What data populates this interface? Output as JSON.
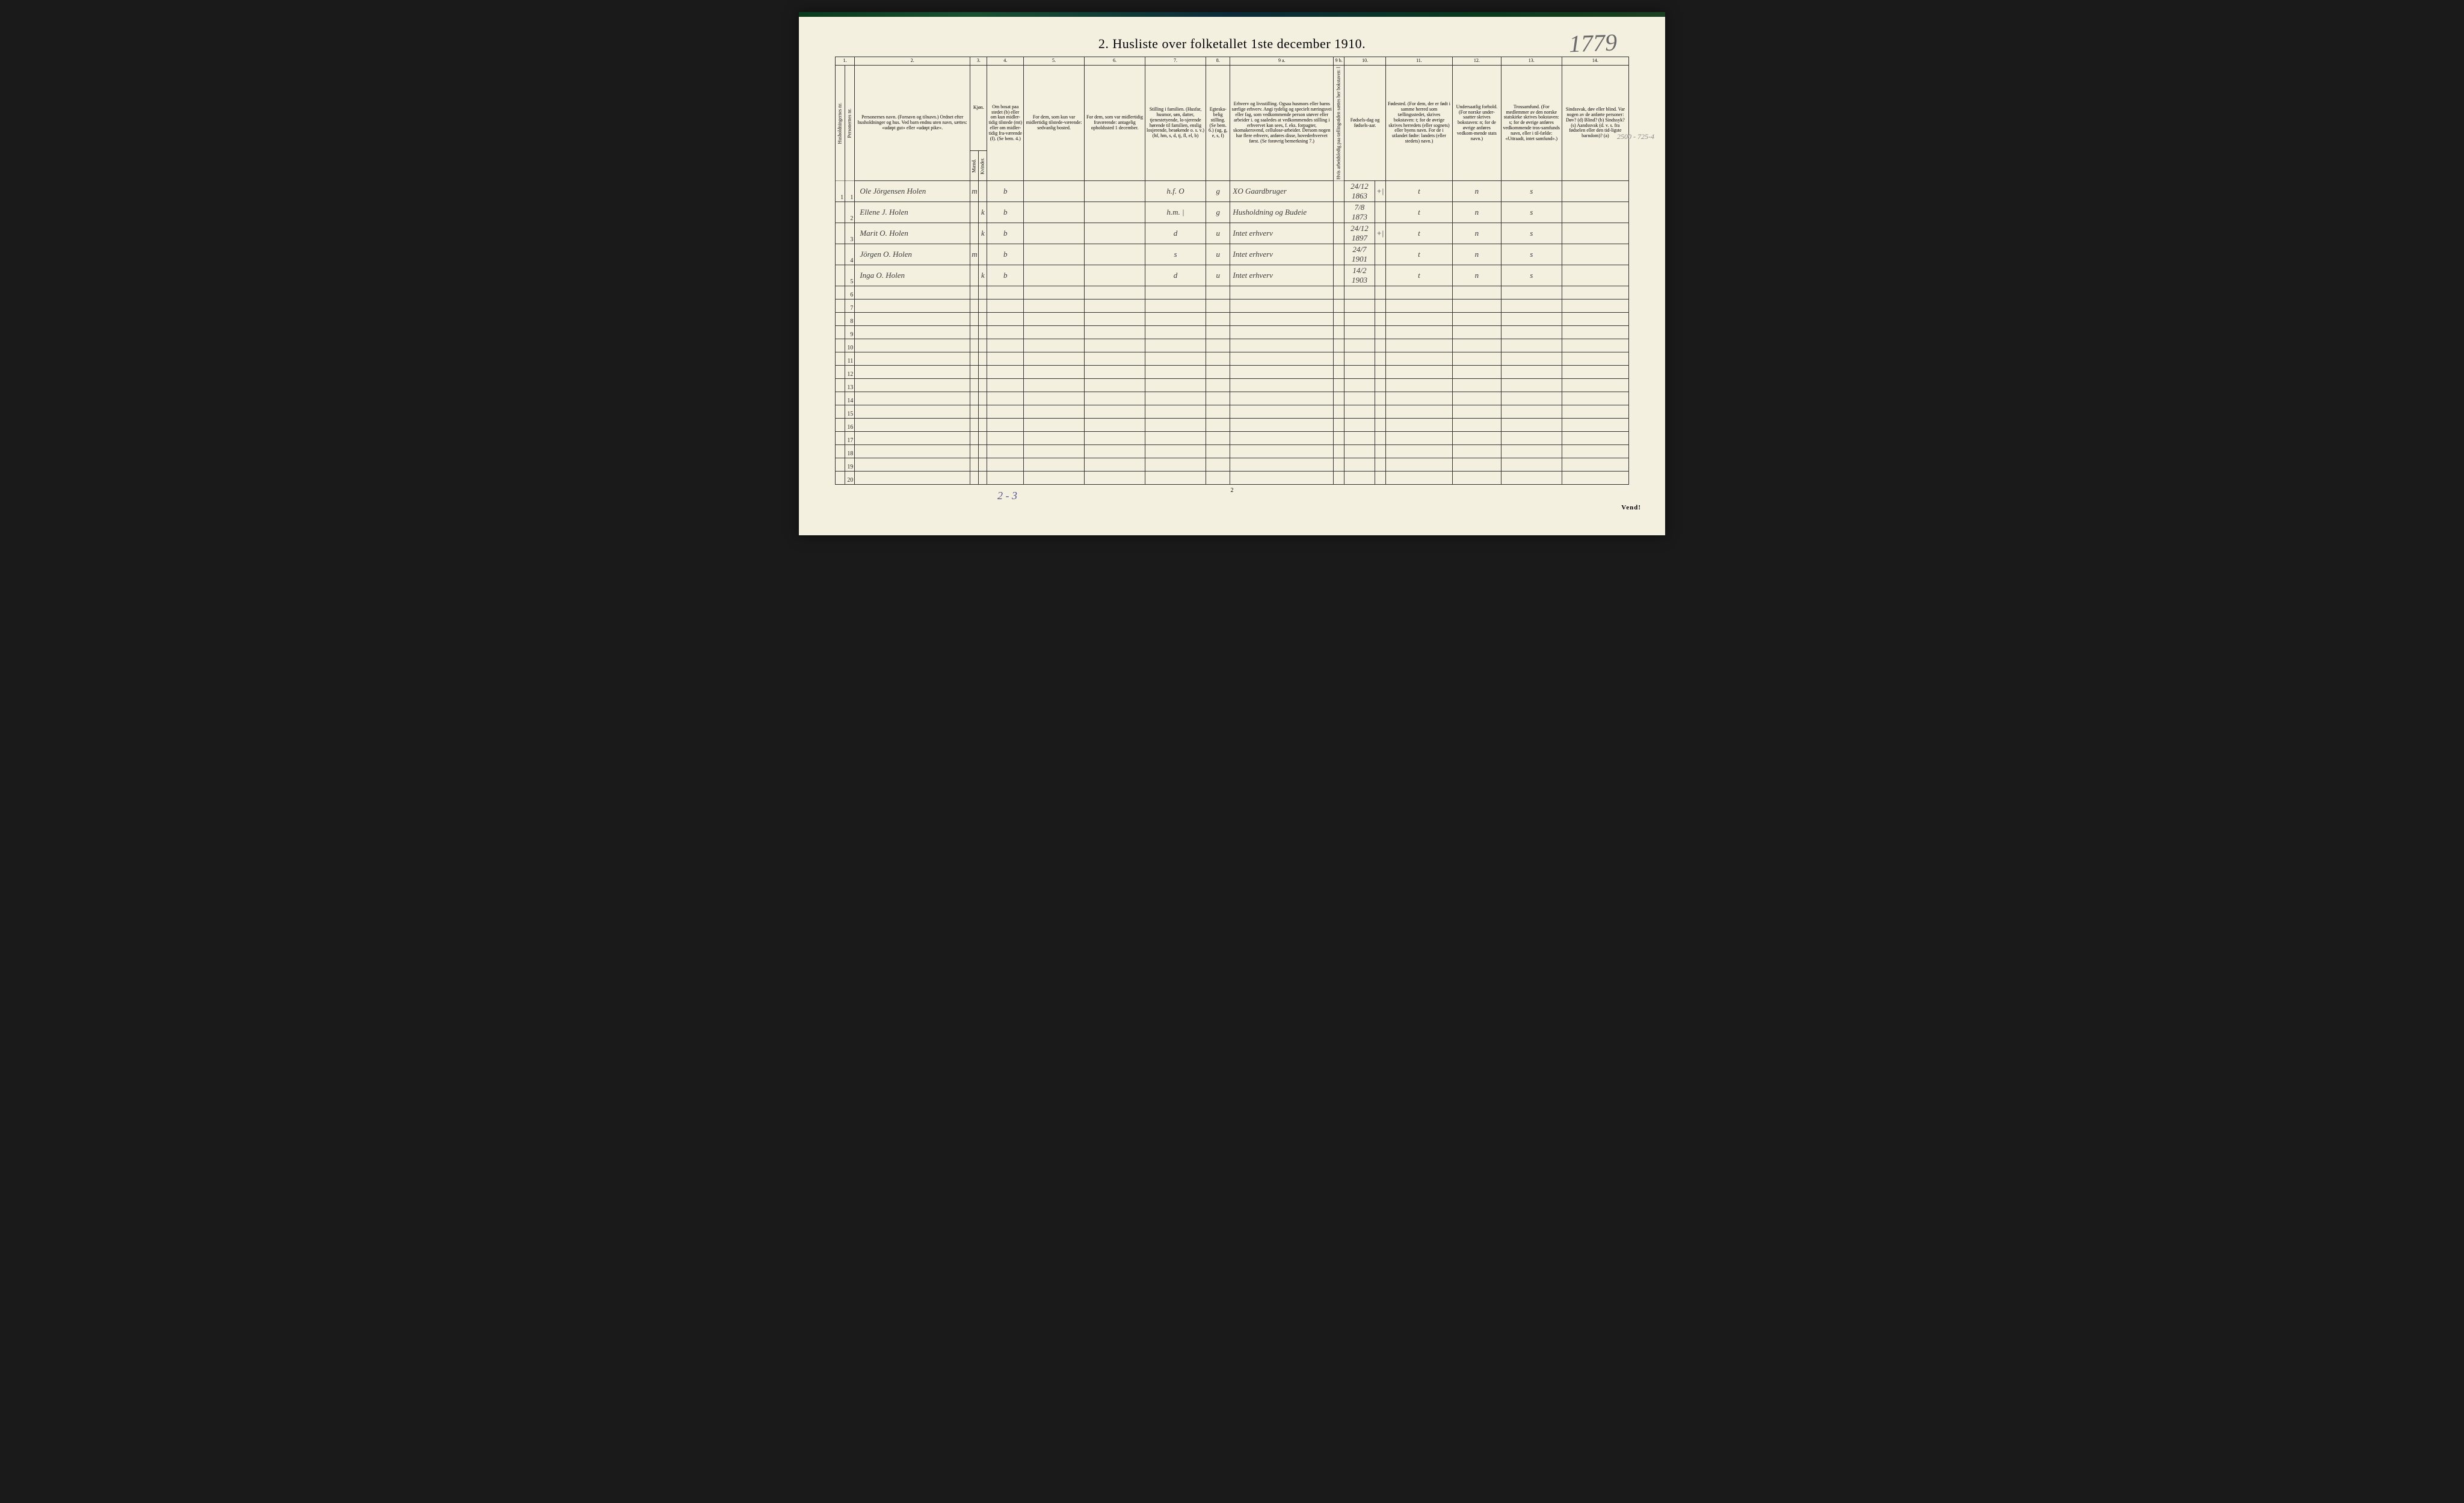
{
  "title": "2.  Husliste over folketallet 1ste december 1910.",
  "handwritten_top_right": "1779",
  "handwritten_margin": "2500 - 725-4",
  "handwritten_bottom": "2 - 3",
  "page_number": "2",
  "vend": "Vend!",
  "column_numbers": [
    "1.",
    "2.",
    "3.",
    "4.",
    "5.",
    "6.",
    "7.",
    "8.",
    "9 a.",
    "9 b.",
    "10.",
    "11.",
    "12.",
    "13.",
    "14."
  ],
  "headers": {
    "h1": "Husholdningernes nr.",
    "h1b": "Personernes nr.",
    "h2": "Personernes navn.\n(Fornavn og tilnavn.)\nOrdnet efter husholdninger og hus.\nVed barn endnu uten navn, sættes: «udøpt gut» eller «udøpt pike».",
    "h3": "Kjøn.",
    "h3m": "Mænd.",
    "h3k": "Kvinder.",
    "h3mk": "m.  k.",
    "h4": "Om bosat paa stedet (b) eller om kun midler-tidig tilstede (mt) eller om midler-tidig fra-værende (f). (Se bem. 4.)",
    "h5": "For dem, som kun var midlertidig tilstede-værende:\nsedvanlig bosted.",
    "h6": "For dem, som var midlertidig fraværende:\nantagelig opholdssted 1 december.",
    "h7": "Stilling i familien.\n(Husfar, husmor, søn, datter, tjenestetyende, lo-sjerende hørende til familien, enslig losjerende, besøkende o. s. v.)\n(hf, hm, s, d, tj, fl, el, b)",
    "h8": "Egteska-belig stilling.\n(Se bem. 6.)\n(ug, g, e, s, f)",
    "h9a": "Erhverv og livsstilling.\nOgsaa husmors eller barns særlige erhverv. Angi tydelig og specielt næringsvei eller fag, som vedkommende person utøver eller arbeider i. og saaledes at vedkommendes stilling i erhvervet kan sees, f. eks. forpagter, skomakersvend, cellulose-arbeider. Dersom nogen har flere erhverv, anføres disse, hovederhvervet først. (Se forøvrig bemerkning 7.)",
    "h9b": "Hvis arbeidsledig paa tællingstiden sættes her bokstaven: l",
    "h10": "Fødsels-dag og fødsels-aar.",
    "h11": "Fødested.\n(For dem, der er født i samme herred som tællingsstedet, skrives bokstaven: t; for de øvrige skrives herredets (eller sognets) eller byens navn. For de i utlandet fødte: landets (eller stedets) navn.)",
    "h12": "Undersaatlig forhold.\n(For norske under-saatter skrives bokstaven: n; for de øvrige anføres vedkom-mende stats navn.)",
    "h13": "Trossamfund.\n(For medlemmer av den norske statskirke skrives bokstaven: s; for de øvrige anføres vedkommende tros-samfunds navn, eller i til-fælde: «Uttraadt, intet samfund».)",
    "h14": "Sindssvak, døv eller blind.\nVar nogen av de anførte personer:\nDøv?     (d)\nBlind?    (b)\nSindssyk? (s)\nAandssvak (d. v. s. fra fødselen eller den tid-ligste barndom)? (a)"
  },
  "rows": [
    {
      "hh": "1",
      "pn": "1",
      "name": "Ole Jörgensen Holen",
      "m": "m",
      "k": "",
      "res": "b",
      "c5": "",
      "c6": "",
      "fam": "h.f.   O",
      "civ": "g",
      "occ": "XO Gaardbruger",
      "led": "",
      "dob": "24/12 1863",
      "tick": "+|",
      "birthplace": "t",
      "nat": "n",
      "rel": "s",
      "dis": ""
    },
    {
      "hh": "",
      "pn": "2",
      "name": "Ellene J. Holen",
      "m": "",
      "k": "k",
      "res": "b",
      "c5": "",
      "c6": "",
      "fam": "h.m.   |",
      "civ": "g",
      "occ": "Husholdning og Budeie",
      "led": "",
      "dob": "7/8 1873",
      "tick": "",
      "birthplace": "t",
      "nat": "n",
      "rel": "s",
      "dis": ""
    },
    {
      "hh": "",
      "pn": "3",
      "name": "Marit O. Holen",
      "m": "",
      "k": "k",
      "res": "b",
      "c5": "",
      "c6": "",
      "fam": "d",
      "civ": "u",
      "occ": "Intet erhverv",
      "led": "",
      "dob": "24/12 1897",
      "tick": "+|",
      "birthplace": "t",
      "nat": "n",
      "rel": "s",
      "dis": ""
    },
    {
      "hh": "",
      "pn": "4",
      "name": "Jörgen O. Holen",
      "m": "m",
      "k": "",
      "res": "b",
      "c5": "",
      "c6": "",
      "fam": "s",
      "civ": "u",
      "occ": "Intet erhverv",
      "led": "",
      "dob": "24/7 1901",
      "tick": "",
      "birthplace": "t",
      "nat": "n",
      "rel": "s",
      "dis": ""
    },
    {
      "hh": "",
      "pn": "5",
      "name": "Inga O. Holen",
      "m": "",
      "k": "k",
      "res": "b",
      "c5": "",
      "c6": "",
      "fam": "d",
      "civ": "u",
      "occ": "Intet erhverv",
      "led": "",
      "dob": "14/2 1903",
      "tick": "",
      "birthplace": "t",
      "nat": "n",
      "rel": "s",
      "dis": ""
    }
  ],
  "empty_row_count": 15,
  "colwidths": {
    "c1a": 16,
    "c1b": 16,
    "c2": 190,
    "c3m": 14,
    "c3k": 14,
    "c4": 60,
    "c5": 100,
    "c6": 100,
    "c7": 100,
    "c8": 40,
    "c9a": 170,
    "c9b": 18,
    "c10": 50,
    "c10t": 18,
    "c11": 110,
    "c12": 80,
    "c13": 100,
    "c14": 110
  },
  "colors": {
    "paper": "#f4f0e0",
    "ink": "#222222",
    "pencil": "#6a6a6a",
    "border": "#333333"
  }
}
